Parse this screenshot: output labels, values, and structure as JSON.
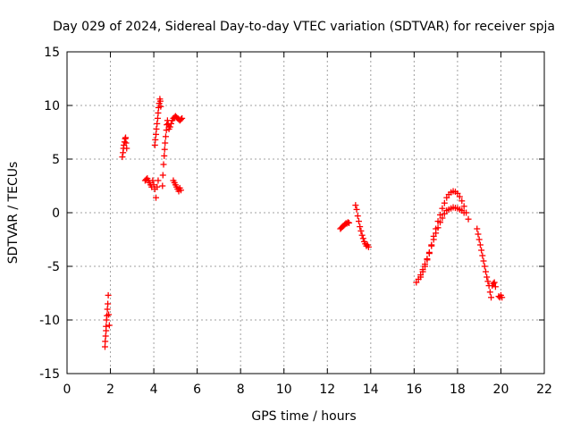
{
  "chart_data": {
    "type": "scatter",
    "title": "Day 029 of 2024, Sidereal Day-to-day VTEC variation (SDTVAR) for receiver spja",
    "xlabel": "GPS time / hours",
    "ylabel": "SDTVAR / TECUs",
    "xlim": [
      0,
      22
    ],
    "ylim": [
      -15,
      15
    ],
    "xticks": [
      0,
      2,
      4,
      6,
      8,
      10,
      12,
      14,
      16,
      18,
      20,
      22
    ],
    "yticks": [
      -15,
      -10,
      -5,
      0,
      5,
      10,
      15
    ],
    "grid": true,
    "marker": "+",
    "color": "#ff0000",
    "series": [
      {
        "name": "seg1",
        "points": [
          [
            1.75,
            -12.5
          ],
          [
            1.76,
            -12.0
          ],
          [
            1.78,
            -11.5
          ],
          [
            1.8,
            -11.0
          ],
          [
            1.8,
            -10.6
          ],
          [
            1.82,
            -10.0
          ],
          [
            1.84,
            -9.6
          ],
          [
            1.86,
            -9.0
          ],
          [
            1.88,
            -8.5
          ],
          [
            1.9,
            -7.7
          ],
          [
            1.92,
            -9.5
          ],
          [
            1.95,
            -10.5
          ]
        ]
      },
      {
        "name": "seg2",
        "points": [
          [
            2.55,
            5.2
          ],
          [
            2.58,
            5.6
          ],
          [
            2.6,
            6.0
          ],
          [
            2.62,
            6.3
          ],
          [
            2.65,
            6.6
          ],
          [
            2.68,
            6.9
          ],
          [
            2.7,
            7.0
          ],
          [
            2.72,
            6.5
          ],
          [
            2.75,
            6.0
          ]
        ]
      },
      {
        "name": "seg3",
        "points": [
          [
            3.6,
            3.0
          ],
          [
            3.65,
            3.1
          ],
          [
            3.7,
            3.2
          ],
          [
            3.75,
            3.0
          ],
          [
            3.8,
            2.8
          ],
          [
            3.85,
            2.6
          ],
          [
            3.9,
            2.4
          ],
          [
            3.95,
            3.0
          ],
          [
            4.0,
            2.6
          ],
          [
            4.05,
            2.2
          ],
          [
            4.1,
            1.4
          ],
          [
            4.15,
            2.4
          ],
          [
            4.2,
            3.0
          ]
        ]
      },
      {
        "name": "seg4",
        "points": [
          [
            4.05,
            6.3
          ],
          [
            4.07,
            6.8
          ],
          [
            4.1,
            7.3
          ],
          [
            4.12,
            7.8
          ],
          [
            4.15,
            8.3
          ],
          [
            4.18,
            8.8
          ],
          [
            4.2,
            9.3
          ],
          [
            4.22,
            9.8
          ],
          [
            4.25,
            10.2
          ],
          [
            4.28,
            10.6
          ],
          [
            4.3,
            10.4
          ],
          [
            4.32,
            9.9
          ]
        ]
      },
      {
        "name": "seg5",
        "points": [
          [
            4.4,
            2.5
          ],
          [
            4.42,
            3.5
          ],
          [
            4.45,
            4.5
          ],
          [
            4.48,
            5.3
          ],
          [
            4.5,
            5.9
          ],
          [
            4.52,
            6.5
          ],
          [
            4.55,
            7.1
          ],
          [
            4.58,
            7.7
          ],
          [
            4.6,
            8.2
          ],
          [
            4.63,
            8.6
          ],
          [
            4.66,
            8.3
          ],
          [
            4.7,
            8.0
          ]
        ]
      },
      {
        "name": "seg6",
        "points": [
          [
            4.7,
            7.8
          ],
          [
            4.75,
            8.0
          ],
          [
            4.8,
            8.3
          ],
          [
            4.85,
            8.6
          ],
          [
            4.9,
            8.8
          ],
          [
            4.95,
            8.9
          ],
          [
            5.0,
            9.0
          ],
          [
            5.05,
            8.9
          ],
          [
            5.1,
            8.8
          ],
          [
            5.15,
            8.7
          ],
          [
            5.2,
            8.6
          ],
          [
            5.25,
            8.7
          ],
          [
            5.3,
            8.8
          ]
        ]
      },
      {
        "name": "seg7",
        "points": [
          [
            4.9,
            3.0
          ],
          [
            4.95,
            2.8
          ],
          [
            5.0,
            2.6
          ],
          [
            5.05,
            2.4
          ],
          [
            5.1,
            2.2
          ],
          [
            5.15,
            2.0
          ],
          [
            5.2,
            2.3
          ],
          [
            5.25,
            2.1
          ]
        ]
      },
      {
        "name": "seg8",
        "points": [
          [
            12.6,
            -1.5
          ],
          [
            12.65,
            -1.4
          ],
          [
            12.7,
            -1.3
          ],
          [
            12.75,
            -1.2
          ],
          [
            12.8,
            -1.1
          ],
          [
            12.85,
            -1.0
          ],
          [
            12.9,
            -1.0
          ],
          [
            12.95,
            -0.9
          ],
          [
            13.0,
            -0.95
          ]
        ]
      },
      {
        "name": "seg9",
        "points": [
          [
            13.3,
            0.7
          ],
          [
            13.35,
            0.3
          ],
          [
            13.4,
            -0.3
          ],
          [
            13.45,
            -0.8
          ],
          [
            13.5,
            -1.3
          ],
          [
            13.55,
            -1.7
          ],
          [
            13.6,
            -2.1
          ],
          [
            13.65,
            -2.4
          ],
          [
            13.7,
            -2.7
          ],
          [
            13.75,
            -2.9
          ],
          [
            13.8,
            -3.1
          ],
          [
            13.85,
            -3.0
          ],
          [
            13.9,
            -3.2
          ]
        ]
      },
      {
        "name": "seg10",
        "points": [
          [
            16.1,
            -6.5
          ],
          [
            16.2,
            -6.2
          ],
          [
            16.3,
            -5.8
          ],
          [
            16.4,
            -5.3
          ],
          [
            16.5,
            -4.8
          ],
          [
            16.6,
            -4.3
          ],
          [
            16.7,
            -3.7
          ],
          [
            16.8,
            -3.1
          ],
          [
            16.9,
            -2.5
          ],
          [
            17.0,
            -1.9
          ],
          [
            17.1,
            -1.4
          ],
          [
            17.2,
            -0.9
          ],
          [
            17.3,
            -0.5
          ],
          [
            17.4,
            -0.1
          ],
          [
            17.5,
            0.2
          ],
          [
            17.6,
            0.3
          ],
          [
            17.7,
            0.4
          ],
          [
            17.8,
            0.5
          ],
          [
            17.9,
            0.45
          ],
          [
            18.0,
            0.4
          ],
          [
            18.1,
            0.3
          ],
          [
            18.2,
            0.2
          ],
          [
            18.3,
            0.0
          ]
        ]
      },
      {
        "name": "seg11",
        "points": [
          [
            16.3,
            -6.0
          ],
          [
            16.4,
            -5.5
          ],
          [
            16.5,
            -5.0
          ],
          [
            16.6,
            -4.4
          ],
          [
            16.7,
            -3.8
          ],
          [
            16.8,
            -3.0
          ],
          [
            16.9,
            -2.2
          ],
          [
            17.0,
            -1.5
          ],
          [
            17.1,
            -0.8
          ],
          [
            17.2,
            -0.2
          ],
          [
            17.3,
            0.4
          ],
          [
            17.4,
            0.9
          ],
          [
            17.5,
            1.4
          ],
          [
            17.6,
            1.7
          ],
          [
            17.7,
            1.9
          ],
          [
            17.8,
            2.0
          ],
          [
            17.9,
            1.95
          ],
          [
            18.0,
            1.8
          ],
          [
            18.1,
            1.5
          ],
          [
            18.2,
            1.1
          ],
          [
            18.3,
            0.6
          ],
          [
            18.4,
            0.0
          ],
          [
            18.5,
            -0.6
          ]
        ]
      },
      {
        "name": "seg12",
        "points": [
          [
            18.9,
            -1.5
          ],
          [
            18.95,
            -2.0
          ],
          [
            19.0,
            -2.5
          ],
          [
            19.05,
            -3.0
          ],
          [
            19.1,
            -3.5
          ],
          [
            19.15,
            -4.0
          ],
          [
            19.2,
            -4.5
          ],
          [
            19.25,
            -5.0
          ],
          [
            19.3,
            -5.5
          ],
          [
            19.35,
            -6.0
          ],
          [
            19.4,
            -6.4
          ],
          [
            19.45,
            -6.8
          ],
          [
            19.5,
            -7.4
          ],
          [
            19.55,
            -7.9
          ],
          [
            19.6,
            -6.8
          ],
          [
            19.65,
            -6.6
          ],
          [
            19.7,
            -6.5
          ],
          [
            19.75,
            -6.9
          ]
        ]
      },
      {
        "name": "seg13",
        "points": [
          [
            19.9,
            -7.8
          ],
          [
            19.95,
            -7.9
          ],
          [
            20.0,
            -7.7
          ],
          [
            20.05,
            -7.9
          ]
        ]
      }
    ]
  }
}
